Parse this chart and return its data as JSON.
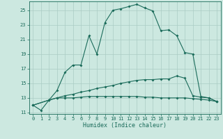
{
  "xlabel": "Humidex (Indice chaleur)",
  "bg_color": "#cce8e0",
  "grid_color": "#aaccc4",
  "line_color": "#1a6b5a",
  "xlim": [
    -0.5,
    23.5
  ],
  "ylim": [
    10.8,
    26.2
  ],
  "yticks": [
    11,
    13,
    15,
    17,
    19,
    21,
    23,
    25
  ],
  "xticks": [
    0,
    1,
    2,
    3,
    4,
    5,
    6,
    7,
    8,
    9,
    10,
    11,
    12,
    13,
    14,
    15,
    16,
    17,
    18,
    19,
    20,
    21,
    22,
    23
  ],
  "line1_x": [
    0,
    1,
    2,
    3,
    4,
    5,
    6,
    7,
    8,
    9,
    10,
    11,
    12,
    13,
    14,
    15,
    16,
    17,
    18,
    19,
    20,
    21,
    22,
    23
  ],
  "line1_y": [
    12.0,
    11.3,
    12.7,
    14.0,
    16.5,
    17.5,
    17.5,
    21.5,
    19.0,
    23.3,
    25.0,
    25.2,
    25.5,
    25.8,
    25.3,
    24.9,
    22.2,
    22.3,
    21.5,
    19.2,
    19.0,
    13.2,
    13.0,
    12.5
  ],
  "line2_x": [
    0,
    2,
    3,
    4,
    5,
    6,
    7,
    8,
    9,
    10,
    11,
    12,
    13,
    14,
    15,
    16,
    17,
    18,
    19,
    20,
    21,
    22,
    23
  ],
  "line2_y": [
    12.0,
    12.7,
    13.0,
    13.3,
    13.5,
    13.8,
    14.0,
    14.3,
    14.5,
    14.7,
    15.0,
    15.2,
    15.4,
    15.5,
    15.5,
    15.6,
    15.6,
    16.0,
    15.7,
    13.3,
    13.1,
    13.0,
    12.5
  ],
  "line3_x": [
    0,
    2,
    3,
    4,
    5,
    6,
    7,
    8,
    9,
    10,
    11,
    12,
    13,
    14,
    15,
    16,
    17,
    18,
    19,
    20,
    21,
    22,
    23
  ],
  "line3_y": [
    12.0,
    12.7,
    13.0,
    13.0,
    13.0,
    13.1,
    13.2,
    13.2,
    13.2,
    13.2,
    13.2,
    13.2,
    13.2,
    13.1,
    13.1,
    13.0,
    13.0,
    13.0,
    13.0,
    12.9,
    12.8,
    12.7,
    12.5
  ]
}
